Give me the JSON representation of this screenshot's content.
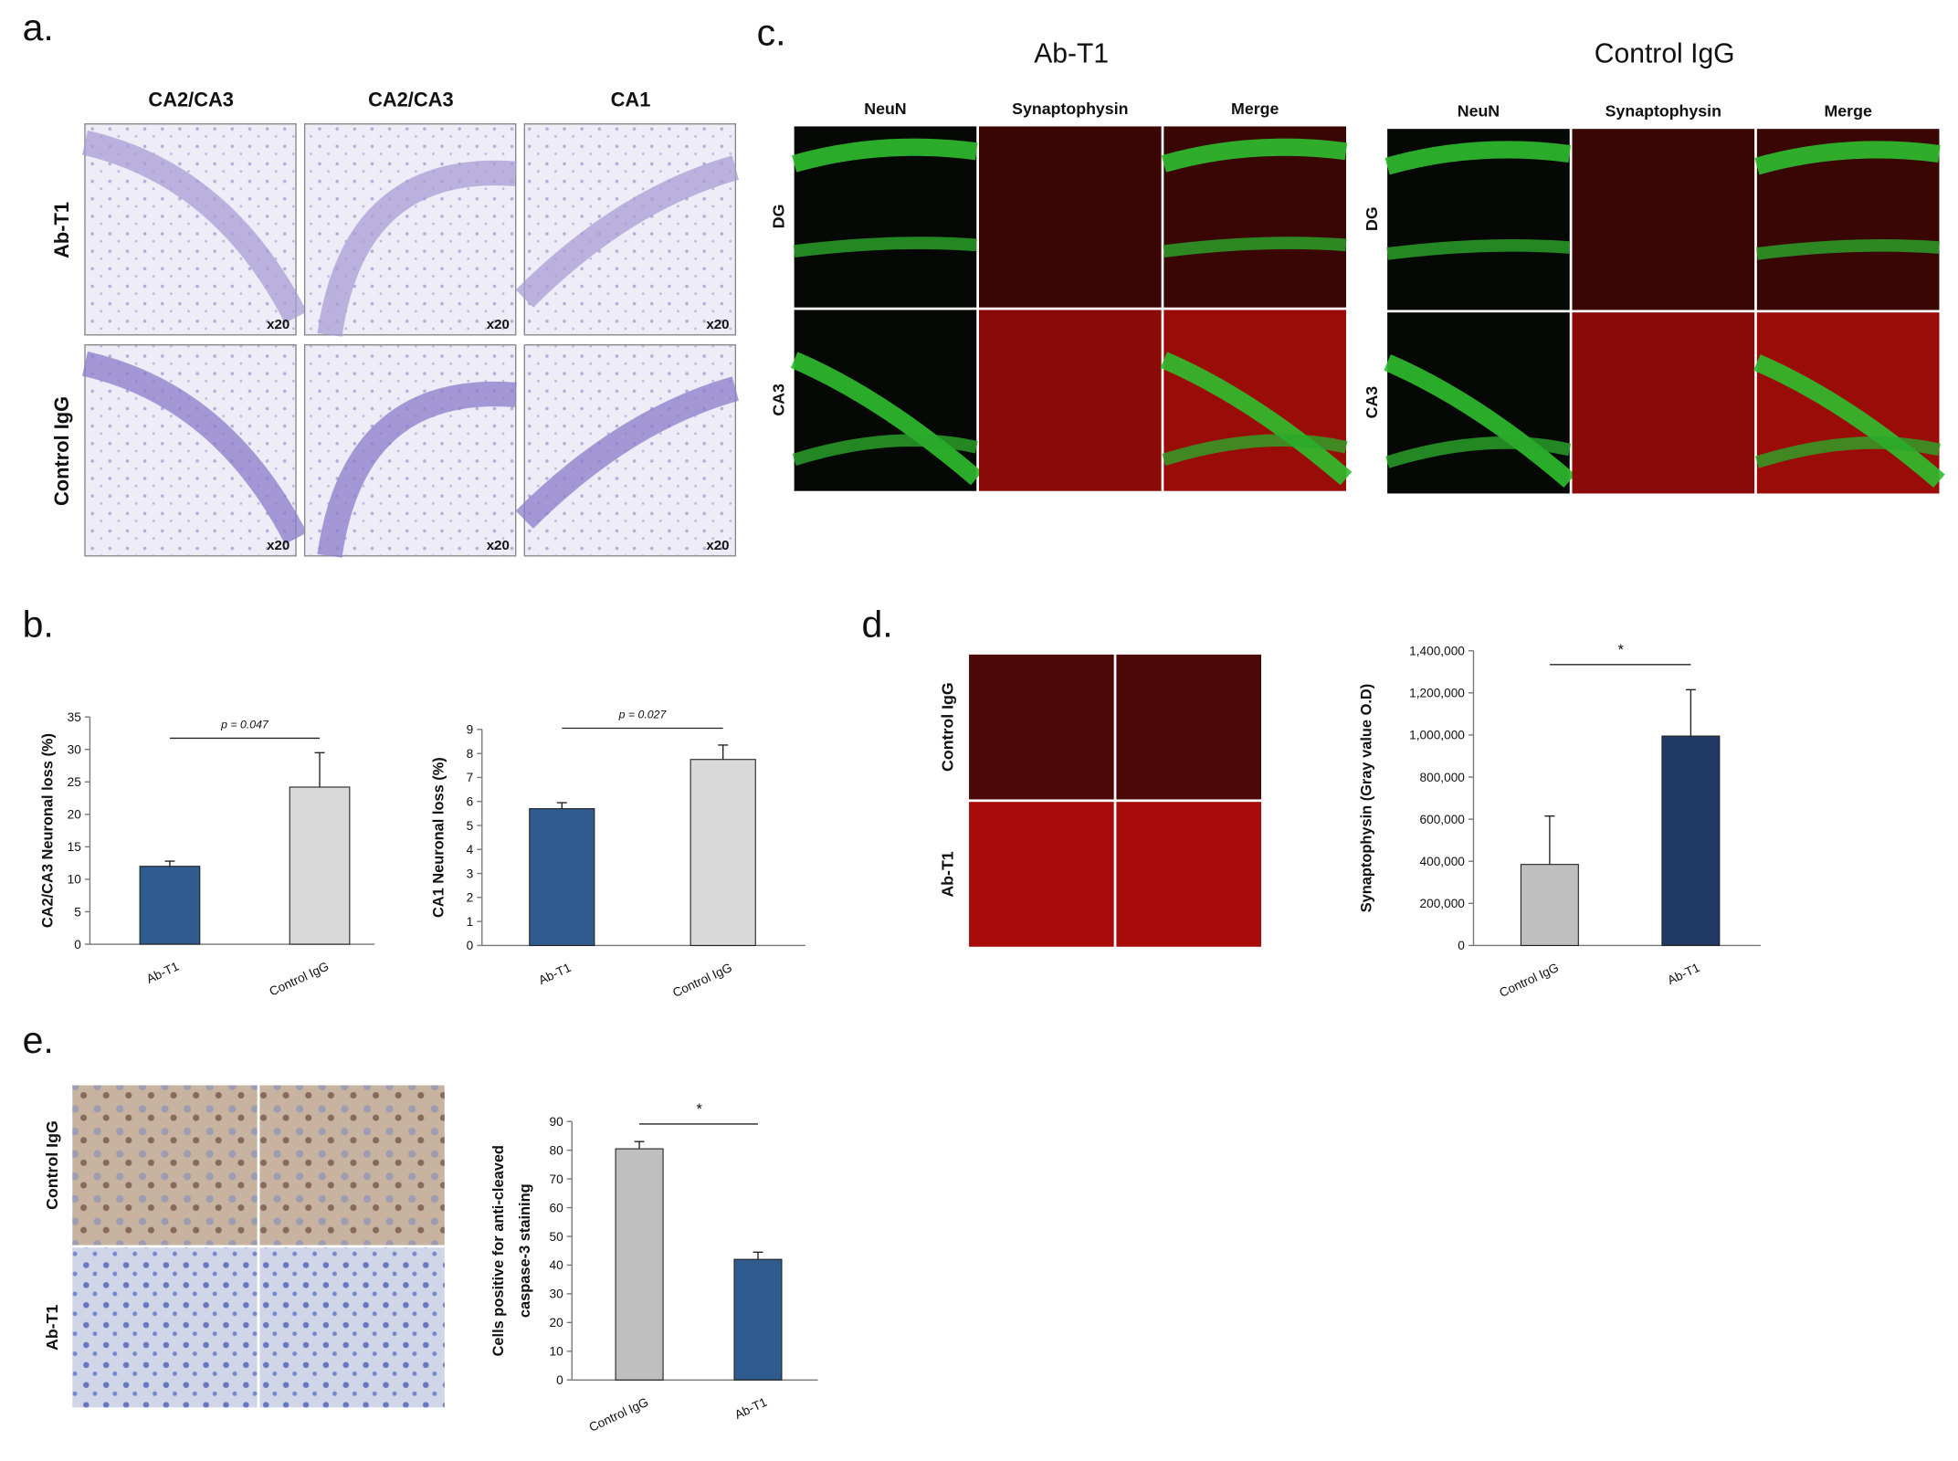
{
  "panel_a": {
    "label": "a.",
    "columns": [
      "CA2/CA3",
      "CA2/CA3",
      "CA1"
    ],
    "rows": [
      "Ab-T1",
      "Control IgG"
    ],
    "magnification": "x20"
  },
  "panel_b": {
    "label": "b."
  },
  "panel_c": {
    "label": "c.",
    "groups": [
      {
        "title": "Ab-T1",
        "columns": [
          "NeuN",
          "Synaptophysin",
          "Merge"
        ],
        "rows": [
          "DG",
          "CA3"
        ]
      },
      {
        "title": "Control IgG",
        "columns": [
          "NeuN",
          "Synaptophysin",
          "Merge"
        ],
        "rows": [
          "DG",
          "CA3"
        ]
      }
    ]
  },
  "panel_d": {
    "label": "d.",
    "rows": [
      "Control IgG",
      "Ab-T1"
    ]
  },
  "panel_e": {
    "label": "e.",
    "rows": [
      "Control IgG",
      "Ab-T1"
    ]
  },
  "chart_data": [
    {
      "type": "bar",
      "y_label": [
        "CA2/CA3 Neuronal loss (%)"
      ],
      "categories": [
        "Ab-T1",
        "Control IgG"
      ],
      "values": [
        12,
        24.2
      ],
      "errors": [
        0.8,
        5.3
      ],
      "colors": [
        "#2f5b8f",
        "#d9d9d9"
      ],
      "annotation": "p = 0.047",
      "ylim": [
        0,
        35
      ],
      "yticks": [
        0,
        5,
        10,
        15,
        20,
        25,
        30,
        35
      ]
    },
    {
      "type": "bar",
      "y_label": [
        "CA1 Neuronal loss (%)"
      ],
      "categories": [
        "Ab-T1",
        "Control IgG"
      ],
      "values": [
        5.7,
        7.75
      ],
      "errors": [
        0.25,
        0.6
      ],
      "colors": [
        "#2f5b8f",
        "#d9d9d9"
      ],
      "annotation": "p = 0.027",
      "ylim": [
        0,
        9
      ],
      "yticks": [
        0,
        1,
        2,
        3,
        4,
        5,
        6,
        7,
        8,
        9
      ]
    },
    {
      "type": "bar",
      "y_label": [
        "Synaptophysin  (Gray value O.D)"
      ],
      "categories": [
        "Control IgG",
        "Ab-T1"
      ],
      "values": [
        385000,
        995000
      ],
      "errors": [
        230000,
        220000
      ],
      "colors": [
        "#bfbfbf",
        "#1f3864"
      ],
      "annotation": "*",
      "ylim": [
        0,
        1400000
      ],
      "yticks": [
        0,
        {
          "value": 200000,
          "label": "200,000"
        },
        {
          "value": 400000,
          "label": "400,000"
        },
        {
          "value": 600000,
          "label": "600,000"
        },
        {
          "value": 800000,
          "label": "800,000"
        },
        {
          "value": 1000000,
          "label": "1,000,000"
        },
        {
          "value": 1200000,
          "label": "1,200,000"
        },
        {
          "value": 1400000,
          "label": "1,400,000"
        }
      ]
    },
    {
      "type": "bar",
      "y_label": [
        "Cells positive for anti-cleaved",
        "caspase-3 staining"
      ],
      "categories": [
        "Control IgG",
        "Ab-T1"
      ],
      "values": [
        80.5,
        42
      ],
      "errors": [
        2.5,
        2.5
      ],
      "colors": [
        "#bfbfbf",
        "#2f5b8f"
      ],
      "annotation": "*",
      "ylim": [
        0,
        90
      ],
      "yticks": [
        0,
        10,
        20,
        30,
        40,
        50,
        60,
        70,
        80,
        90
      ]
    }
  ]
}
